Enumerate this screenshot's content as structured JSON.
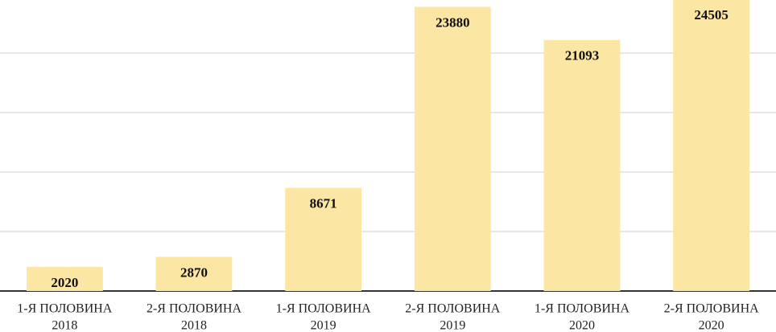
{
  "chart_data": {
    "type": "bar",
    "categories": [
      [
        "1-Я ПОЛОВИНА",
        "2018"
      ],
      [
        "2-Я ПОЛОВИНА",
        "2018"
      ],
      [
        "1-Я ПОЛОВИНА",
        "2019"
      ],
      [
        "2-Я ПОЛОВИНА",
        "2019"
      ],
      [
        "1-Я ПОЛОВИНА",
        "2020"
      ],
      [
        "2-Я ПОЛОВИНА",
        "2020"
      ]
    ],
    "values": [
      2020,
      2870,
      8671,
      23880,
      21093,
      24505
    ],
    "color": "#fbe6a3",
    "ylim": [
      0,
      25000
    ],
    "yticks": [
      0,
      5000,
      10000,
      15000,
      20000
    ],
    "grid": true
  }
}
